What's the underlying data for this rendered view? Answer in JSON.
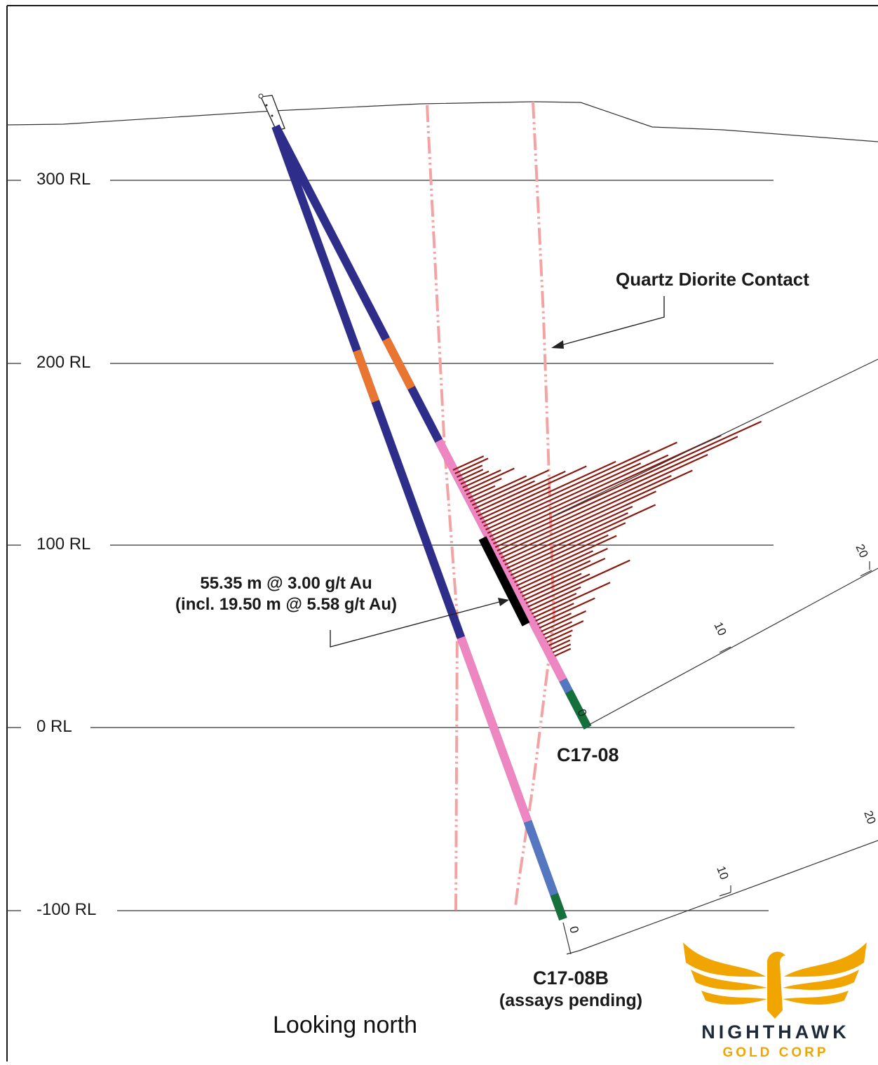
{
  "levels": [
    {
      "id": "rl300",
      "label": "300 RL"
    },
    {
      "id": "rl200",
      "label": "200 RL"
    },
    {
      "id": "rl100",
      "label": "100 RL"
    },
    {
      "id": "rl0",
      "label": "0 RL"
    },
    {
      "id": "rlm100",
      "label": "-100 RL"
    }
  ],
  "annotations": {
    "contact_label": "Quartz Diorite Contact",
    "intercept_line1": "55.35 m @ 3.00 g/t Au",
    "intercept_line2": "(incl. 19.50 m @ 5.58 g/t Au)",
    "orientation": "Looking north"
  },
  "holes": [
    {
      "id": "c17-08",
      "name": "C17-08",
      "note": ""
    },
    {
      "id": "c17-08b",
      "name": "C17-08B",
      "note": "(assays pending)"
    }
  ],
  "scales": {
    "c17-08": {
      "ticks": [
        "0",
        "10",
        "20"
      ]
    },
    "c17-08b": {
      "ticks": [
        "0",
        "10",
        "20"
      ]
    }
  },
  "logo": {
    "name": "NIGHTHAWK",
    "sub": "GOLD CORP"
  },
  "colors": {
    "hole_main": "#2e2e8a",
    "orange_interval": "#e87530",
    "pink_interval": "#ee86c2",
    "light_blue_interval": "#5576c0",
    "green_interval": "#16703a",
    "assay_bar": "#8a1a10",
    "contact_line": "#f3a3a3",
    "logo_gold": "#f0a500"
  }
}
